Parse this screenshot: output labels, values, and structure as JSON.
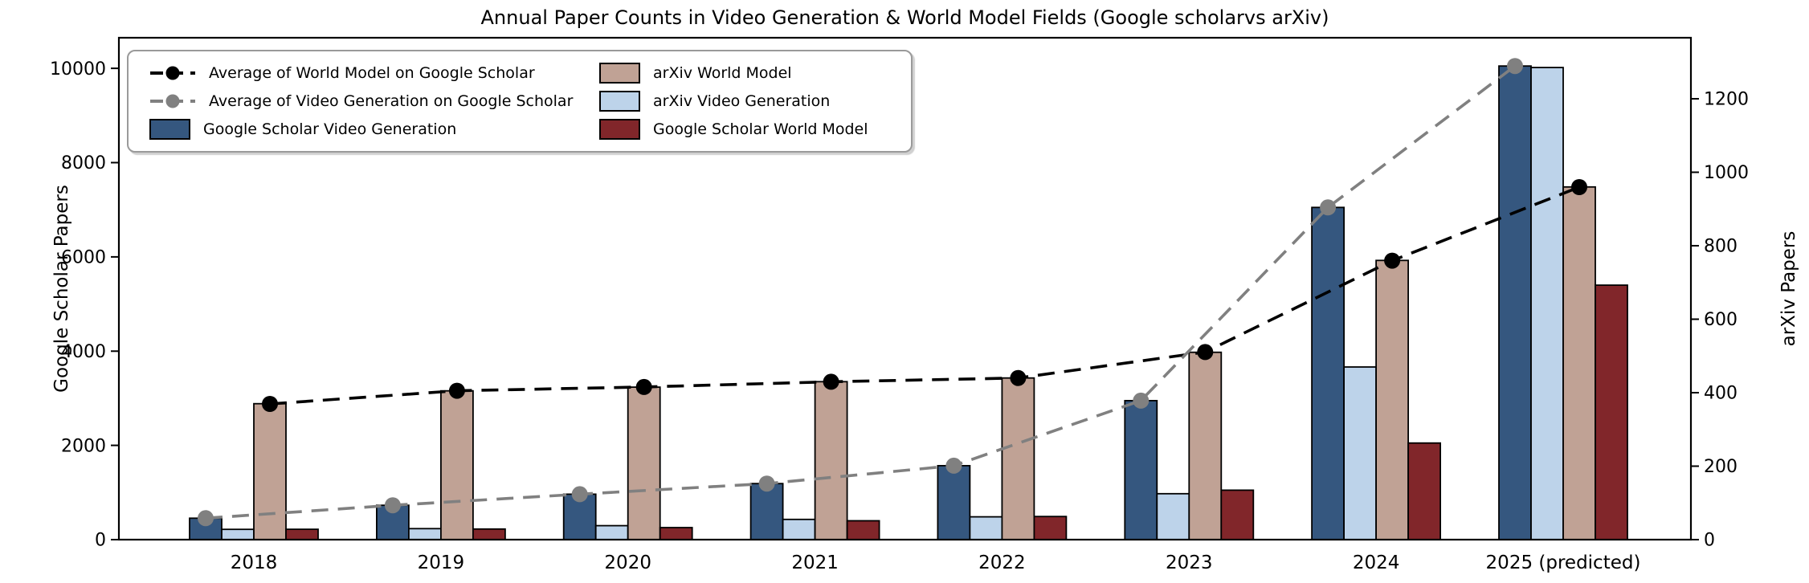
{
  "title": "Annual Paper Counts in Video Generation & World Model Fields (Google scholarvs arXiv)",
  "axes": {
    "left_label": "Google Scholar Papers",
    "right_label": "arXiv Papers",
    "left_ticks": [
      0,
      2000,
      4000,
      6000,
      8000,
      10000
    ],
    "right_ticks": [
      0,
      200,
      400,
      600,
      800,
      1000,
      1200
    ],
    "left_max": 10650,
    "right_max": 1366
  },
  "chart_data": {
    "type": "bar",
    "title": "Annual Paper Counts in Video Generation & World Model Fields (Google scholarvs arXiv)",
    "xlabel": "",
    "ylabel_left": "Google Scholar Papers",
    "ylabel_right": "arXiv Papers",
    "ylim_left": [
      0,
      10650
    ],
    "ylim_right": [
      0,
      1366
    ],
    "grid": false,
    "legend_position": "upper left",
    "categories": [
      "2018",
      "2019",
      "2020",
      "2021",
      "2022",
      "2023",
      "2024",
      "2025 (predicted)"
    ],
    "series": [
      {
        "name": "Google Scholar Video Generation",
        "type": "bar",
        "axis": "left",
        "color": "#35577F",
        "values": [
          455,
          730,
          965,
          1190,
          1570,
          2950,
          7050,
          10050
        ]
      },
      {
        "name": "arXiv Video Generation",
        "type": "bar",
        "axis": "right",
        "color": "#BDD3EA",
        "values": [
          28,
          30,
          38,
          55,
          62,
          125,
          470,
          1285
        ]
      },
      {
        "name": "arXiv World Model",
        "type": "bar",
        "axis": "right",
        "color": "#C0A295",
        "values": [
          370,
          405,
          415,
          430,
          440,
          510,
          760,
          960
        ]
      },
      {
        "name": "Google Scholar World Model",
        "type": "bar",
        "axis": "left",
        "color": "#81262A",
        "values": [
          220,
          225,
          255,
          400,
          490,
          1050,
          2050,
          5400
        ]
      },
      {
        "name": "Average of World Model on Google Scholar",
        "type": "line",
        "axis": "left",
        "color": "#000000",
        "x_offset": 20,
        "values": [
          2880,
          3160,
          3240,
          3350,
          3430,
          3980,
          5920,
          7480
        ]
      },
      {
        "name": "Average of Video Generation on Google Scholar",
        "type": "line",
        "axis": "left",
        "color": "#808080",
        "x_offset": -60,
        "values": [
          455,
          730,
          965,
          1190,
          1570,
          2950,
          7050,
          10050
        ]
      }
    ]
  },
  "legend": {
    "entries": [
      {
        "label": "Average of World Model on Google Scholar",
        "marker": "line",
        "color": "#000000"
      },
      {
        "label": "Average of Video Generation on Google Scholar",
        "marker": "line",
        "color": "#808080"
      },
      {
        "label": "Google Scholar Video Generation",
        "marker": "patch",
        "color": "#35577F"
      },
      {
        "label": "arXiv World Model",
        "marker": "patch",
        "color": "#C0A295"
      },
      {
        "label": "arXiv Video Generation",
        "marker": "patch",
        "color": "#BDD3EA"
      },
      {
        "label": "Google Scholar World Model",
        "marker": "patch",
        "color": "#81262A"
      }
    ]
  }
}
